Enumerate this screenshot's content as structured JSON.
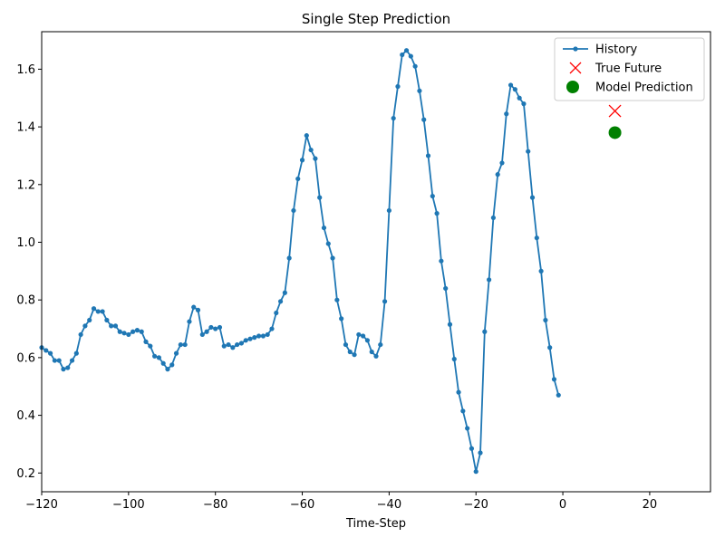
{
  "chart_data": {
    "type": "line",
    "title": "Single Step Prediction",
    "xlabel": "Time-Step",
    "ylabel": "",
    "xlim": [
      -120,
      34
    ],
    "ylim": [
      0.135,
      1.73
    ],
    "xticks": [
      -120,
      -100,
      -80,
      -60,
      -40,
      -20,
      0,
      20
    ],
    "yticks": [
      0.2,
      0.4,
      0.6,
      0.8,
      1.0,
      1.2,
      1.4,
      1.6
    ],
    "grid": false,
    "legend_position": "top-right",
    "colors": {
      "history": "#1f77b4",
      "true_future": "#ff0000",
      "model_prediction": "#008000"
    },
    "legend": [
      {
        "key": "history",
        "label": "History"
      },
      {
        "key": "true_future",
        "label": "True Future"
      },
      {
        "key": "model_prediction",
        "label": "Model Prediction"
      }
    ],
    "history": {
      "name": "History",
      "x_start": -120,
      "x_step": 1,
      "values": [
        0.635,
        0.625,
        0.615,
        0.59,
        0.59,
        0.56,
        0.565,
        0.59,
        0.615,
        0.68,
        0.71,
        0.73,
        0.77,
        0.76,
        0.76,
        0.73,
        0.71,
        0.71,
        0.69,
        0.685,
        0.68,
        0.69,
        0.695,
        0.69,
        0.655,
        0.64,
        0.605,
        0.6,
        0.58,
        0.56,
        0.575,
        0.615,
        0.645,
        0.645,
        0.725,
        0.775,
        0.765,
        0.68,
        0.69,
        0.705,
        0.7,
        0.705,
        0.64,
        0.645,
        0.635,
        0.645,
        0.65,
        0.66,
        0.665,
        0.67,
        0.675,
        0.675,
        0.68,
        0.7,
        0.755,
        0.795,
        0.825,
        0.945,
        1.11,
        1.22,
        1.285,
        1.37,
        1.32,
        1.29,
        1.155,
        1.05,
        0.995,
        0.945,
        0.8,
        0.735,
        0.645,
        0.62,
        0.61,
        0.68,
        0.675,
        0.66,
        0.62,
        0.605,
        0.645,
        0.795,
        1.11,
        1.43,
        1.54,
        1.65,
        1.665,
        1.645,
        1.61,
        1.525,
        1.425,
        1.3,
        1.16,
        1.1,
        0.935,
        0.84,
        0.715,
        0.595,
        0.48,
        0.415,
        0.355,
        0.285,
        0.205,
        0.27,
        0.69,
        0.87,
        1.085,
        1.235,
        1.275,
        1.445,
        1.545,
        1.53,
        1.5,
        1.48,
        1.315,
        1.155,
        1.015,
        0.9,
        0.73,
        0.635,
        0.525,
        0.47
      ]
    },
    "true_future": {
      "name": "True Future",
      "x": 12,
      "y": 1.455
    },
    "model_prediction": {
      "name": "Model Prediction",
      "x": 12,
      "y": 1.38
    }
  }
}
